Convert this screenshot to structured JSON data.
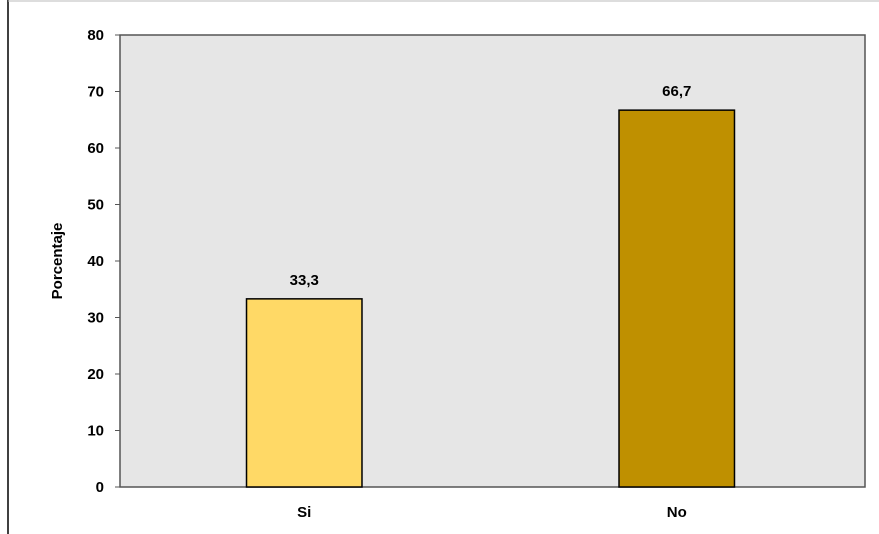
{
  "chart_data": {
    "type": "bar",
    "categories": [
      "Si",
      "No"
    ],
    "values": [
      33.3,
      66.7
    ],
    "value_labels": [
      "33,3",
      "66,7"
    ],
    "ylabel": "Porcentaje",
    "xlabel": "",
    "ylim": [
      0,
      80
    ],
    "yticks": [
      0,
      10,
      20,
      30,
      40,
      50,
      60,
      70,
      80
    ],
    "grid": false,
    "colors": {
      "bars": [
        "#FFD966",
        "#BF9000"
      ],
      "plot_background": "#E6E6E6",
      "outline": "#000000"
    }
  }
}
